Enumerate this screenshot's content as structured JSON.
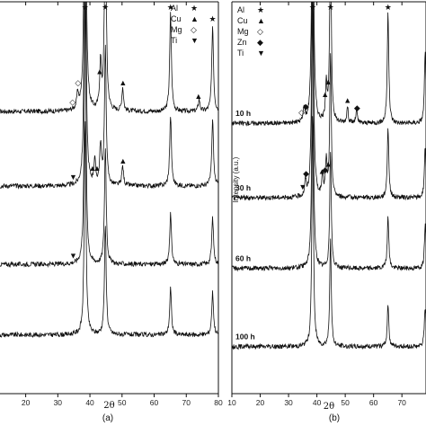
{
  "chart_data": [
    {
      "type": "line",
      "panel_label": "(a)",
      "xlabel": "2θ",
      "ylabel": "",
      "xlim": [
        10,
        80
      ],
      "x_ticks": [
        "20",
        "30",
        "40",
        "50",
        "60",
        "70",
        "80"
      ],
      "legend": [
        {
          "symbol": "★",
          "label": "Al"
        },
        {
          "symbol": "▲",
          "label": "Cu"
        },
        {
          "symbol": "◇",
          "label": "Mg"
        },
        {
          "symbol": "▼",
          "label": "Ti"
        }
      ],
      "series": [
        {
          "baseline": 0.72,
          "peaks": [
            [
              36.2,
              0.04
            ],
            [
              38.5,
              0.95
            ],
            [
              43.3,
              0.12
            ],
            [
              44.8,
              0.55
            ],
            [
              50.2,
              0.06
            ],
            [
              65.1,
              0.25
            ],
            [
              74.0,
              0.03
            ],
            [
              78.2,
              0.22
            ]
          ],
          "markers": [
            {
              "x": 34.6,
              "s": "◇"
            },
            {
              "x": 36.3,
              "s": "◇"
            },
            {
              "x": 38.5,
              "s": "★"
            },
            {
              "x": 43.0,
              "s": "▲"
            },
            {
              "x": 44.8,
              "s": "★"
            },
            {
              "x": 50.3,
              "s": "▲"
            },
            {
              "x": 65.1,
              "s": "★"
            },
            {
              "x": 73.8,
              "s": "▲"
            },
            {
              "x": 78.2,
              "s": "★"
            }
          ]
        },
        {
          "baseline": 0.53,
          "peaks": [
            [
              38.5,
              0.8
            ],
            [
              41.5,
              0.06
            ],
            [
              43.3,
              0.1
            ],
            [
              44.8,
              0.35
            ],
            [
              50.2,
              0.05
            ],
            [
              65.1,
              0.18
            ],
            [
              78.2,
              0.17
            ]
          ],
          "markers": [
            {
              "x": 34.8,
              "s": "▼"
            },
            {
              "x": 40.8,
              "s": "▲"
            },
            {
              "x": 42.2,
              "s": "▲"
            },
            {
              "x": 50.3,
              "s": "▲"
            }
          ]
        },
        {
          "baseline": 0.33,
          "peaks": [
            [
              38.5,
              0.7
            ],
            [
              44.8,
              0.3
            ],
            [
              65.1,
              0.13
            ],
            [
              78.2,
              0.12
            ]
          ],
          "markers": [
            {
              "x": 34.8,
              "s": "▼"
            }
          ]
        },
        {
          "baseline": 0.15,
          "peaks": [
            [
              38.5,
              0.55
            ],
            [
              44.8,
              0.28
            ],
            [
              65.1,
              0.12
            ],
            [
              78.2,
              0.11
            ]
          ],
          "markers": []
        }
      ]
    },
    {
      "type": "line",
      "panel_label": "(b)",
      "xlabel": "2θ",
      "ylabel": "Intensity (a.u.)",
      "xlim": [
        10,
        80
      ],
      "x_ticks": [
        "10",
        "20",
        "30",
        "40",
        "50",
        "60",
        "70"
      ],
      "legend": [
        {
          "symbol": "★",
          "label": "Al"
        },
        {
          "symbol": "▲",
          "label": "Cu"
        },
        {
          "symbol": "◇",
          "label": "Mg"
        },
        {
          "symbol": "◆",
          "label": "Zn"
        },
        {
          "symbol": "▼",
          "label": "Ti"
        }
      ],
      "series": [
        {
          "label": "10 h",
          "baseline": 0.69,
          "peaks": [
            [
              35.5,
              0.04
            ],
            [
              38.5,
              0.98
            ],
            [
              43.3,
              0.1
            ],
            [
              44.8,
              0.5
            ],
            [
              50.8,
              0.04
            ],
            [
              54.0,
              0.03
            ],
            [
              65.1,
              0.28
            ],
            [
              78.2,
              0.18
            ]
          ],
          "markers": [
            {
              "x": 34.6,
              "s": "◇"
            },
            {
              "x": 36.1,
              "s": "◆"
            },
            {
              "x": 38.5,
              "s": "★"
            },
            {
              "x": 42.9,
              "s": "▲"
            },
            {
              "x": 44.0,
              "s": "▲"
            },
            {
              "x": 44.8,
              "s": "★"
            },
            {
              "x": 50.8,
              "s": "▲"
            },
            {
              "x": 54.2,
              "s": "◆"
            },
            {
              "x": 65.1,
              "s": "★"
            }
          ]
        },
        {
          "label": "30 h",
          "baseline": 0.5,
          "peaks": [
            [
              36.0,
              0.04
            ],
            [
              38.5,
              0.85
            ],
            [
              42.0,
              0.05
            ],
            [
              43.3,
              0.09
            ],
            [
              44.8,
              0.36
            ],
            [
              65.1,
              0.18
            ],
            [
              78.2,
              0.13
            ]
          ],
          "markers": [
            {
              "x": 35.0,
              "s": "▼"
            },
            {
              "x": 36.2,
              "s": "◆"
            },
            {
              "x": 41.8,
              "s": "▲"
            },
            {
              "x": 42.9,
              "s": "◆"
            },
            {
              "x": 44.0,
              "s": "▲"
            }
          ]
        },
        {
          "label": "60 h",
          "baseline": 0.32,
          "peaks": [
            [
              38.5,
              0.7
            ],
            [
              44.8,
              0.3
            ],
            [
              65.1,
              0.13
            ],
            [
              78.2,
              0.11
            ]
          ],
          "markers": []
        },
        {
          "label": "100 h",
          "baseline": 0.12,
          "peaks": [
            [
              38.5,
              0.6
            ],
            [
              44.8,
              0.27
            ],
            [
              65.1,
              0.11
            ],
            [
              78.2,
              0.1
            ]
          ],
          "markers": []
        }
      ]
    }
  ]
}
